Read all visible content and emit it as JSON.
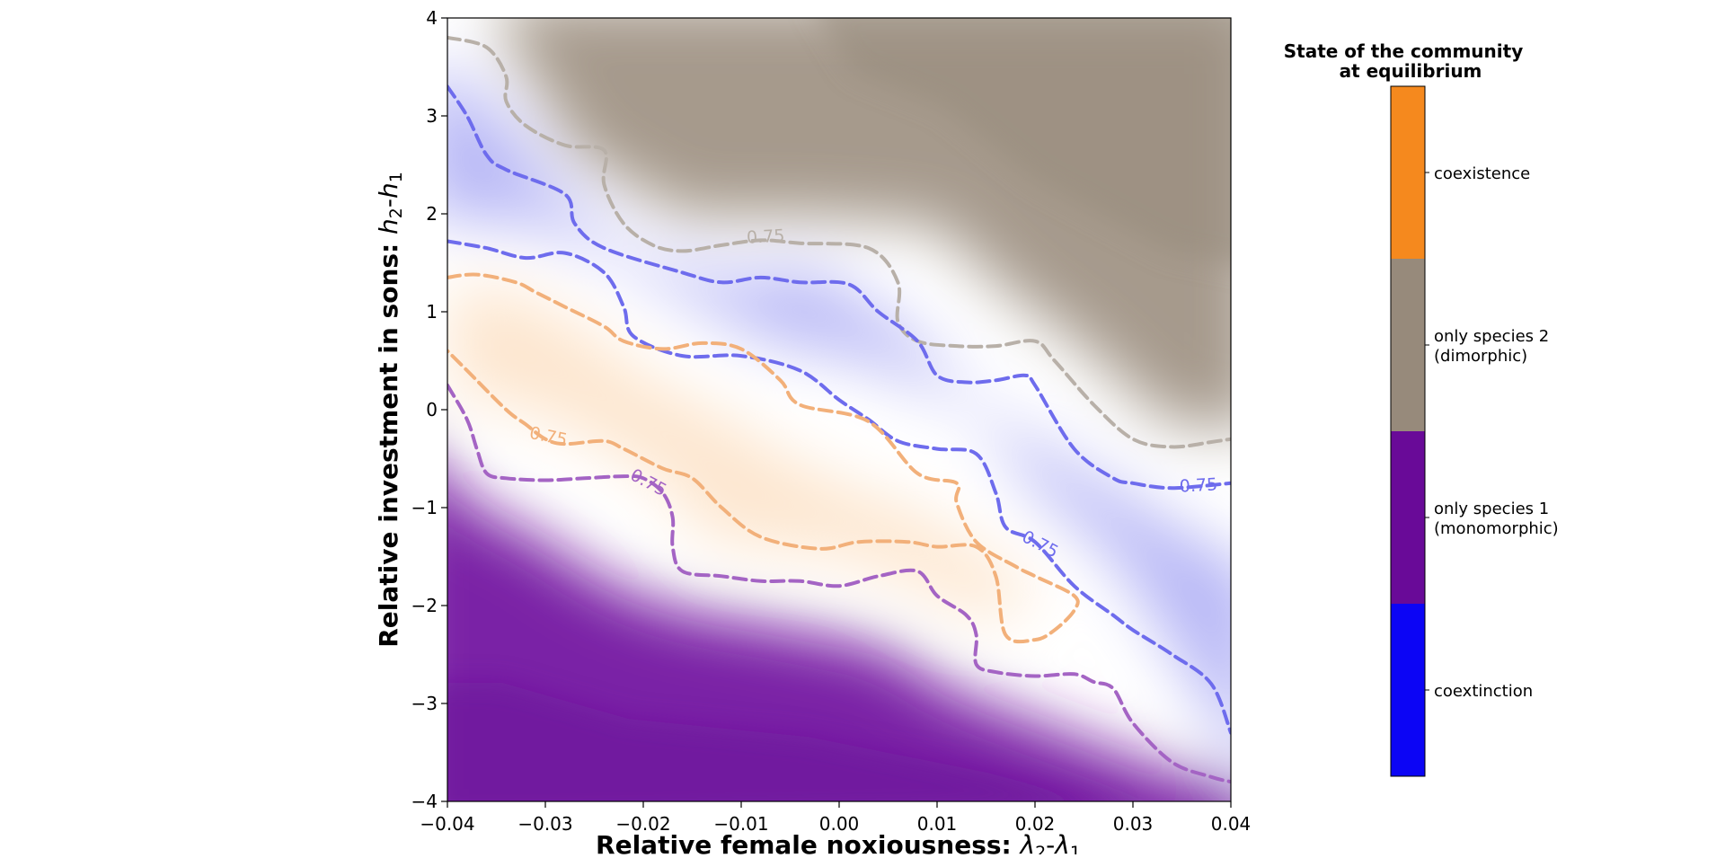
{
  "chart_data": {
    "type": "heatmap",
    "xlabel_main": "Relative female noxiousness: ",
    "xlabel_math": "λ",
    "xlabel_sub1": "2",
    "xlabel_dash": "-",
    "xlabel_sub2": "1",
    "ylabel_main": "Relative investment in sons: ",
    "ylabel_math": "h",
    "ylabel_sub1": "2",
    "ylabel_dash": "-",
    "ylabel_sub2": "1",
    "xlim": [
      -0.04,
      0.04
    ],
    "ylim": [
      -4,
      4
    ],
    "x_ticks": [
      -0.04,
      -0.03,
      -0.02,
      -0.01,
      0.0,
      0.01,
      0.02,
      0.03,
      0.04
    ],
    "x_tick_labels": [
      "−0.04",
      "−0.03",
      "−0.02",
      "−0.01",
      "0.00",
      "0.01",
      "0.02",
      "0.03",
      "0.04"
    ],
    "y_ticks": [
      -4,
      -3,
      -2,
      -1,
      0,
      1,
      2,
      3,
      4
    ],
    "y_tick_labels": [
      "−4",
      "−3",
      "−2",
      "−1",
      "0",
      "1",
      "2",
      "3",
      "4"
    ],
    "legend": {
      "title_line1": "State of the community",
      "title_line2": "at equilibrium",
      "placement": "right",
      "entries": [
        {
          "label_line1": "coexistence",
          "label_line2": "",
          "color": "#f5891e"
        },
        {
          "label_line1": "only species 2",
          "label_line2": "(dimorphic)",
          "color": "#978a7b"
        },
        {
          "label_line1": "only species 1",
          "label_line2": "(monomorphic)",
          "color": "#690a98"
        },
        {
          "label_line1": "coextinction",
          "label_line2": "",
          "color": "#0c05f5"
        }
      ]
    },
    "contour_level": "0.75",
    "contours": [
      {
        "state": "only species 2",
        "color": "#b8b0a8",
        "x": [
          -0.04,
          -0.036,
          -0.034,
          -0.034,
          -0.032,
          -0.028,
          -0.024,
          -0.024,
          -0.022,
          -0.019,
          -0.016,
          -0.012,
          -0.008,
          -0.004,
          0.003,
          0.006,
          0.006,
          0.008,
          0.012,
          0.016,
          0.02,
          0.022,
          0.026,
          0.03,
          0.034,
          0.038,
          0.04
        ],
        "y": [
          3.8,
          3.7,
          3.4,
          3.15,
          2.9,
          2.7,
          2.65,
          2.3,
          1.9,
          1.68,
          1.62,
          1.68,
          1.73,
          1.7,
          1.65,
          1.3,
          0.9,
          0.7,
          0.65,
          0.65,
          0.7,
          0.5,
          0.05,
          -0.3,
          -0.38,
          -0.33,
          -0.3
        ]
      },
      {
        "state": "coextinction",
        "color": "#6e6ced",
        "x": [
          -0.04,
          -0.038,
          -0.036,
          -0.034,
          -0.028,
          -0.027,
          -0.024,
          -0.016,
          -0.012,
          -0.008,
          -0.004,
          0.001,
          0.004,
          0.008,
          0.01,
          0.013,
          0.016,
          0.019,
          0.02,
          0.024,
          0.028,
          0.03,
          0.034,
          0.04
        ],
        "y": [
          3.3,
          3.0,
          2.6,
          2.45,
          2.2,
          1.9,
          1.65,
          1.4,
          1.3,
          1.35,
          1.3,
          1.28,
          1.0,
          0.7,
          0.35,
          0.28,
          0.3,
          0.35,
          0.25,
          -0.4,
          -0.7,
          -0.75,
          -0.8,
          -0.75
        ]
      },
      {
        "state": "coextinction",
        "color": "#6e6ced",
        "x": [
          -0.04,
          -0.036,
          -0.032,
          -0.028,
          -0.024,
          -0.022,
          -0.021,
          -0.016,
          -0.01,
          -0.004,
          0.0,
          0.003,
          0.006,
          0.01,
          0.014,
          0.016,
          0.017,
          0.02,
          0.024,
          0.028,
          0.03,
          0.034,
          0.038,
          0.04
        ],
        "y": [
          1.72,
          1.65,
          1.55,
          1.6,
          1.4,
          1.05,
          0.75,
          0.55,
          0.55,
          0.4,
          0.1,
          -0.1,
          -0.32,
          -0.4,
          -0.45,
          -0.85,
          -1.2,
          -1.35,
          -1.8,
          -2.1,
          -2.25,
          -2.5,
          -2.8,
          -3.3
        ]
      },
      {
        "state": "coexistence",
        "color": "#f2b07a",
        "x": [
          -0.04,
          -0.037,
          -0.033,
          -0.031,
          -0.028,
          -0.024,
          -0.022,
          -0.018,
          -0.014,
          -0.01,
          -0.006,
          -0.004,
          0.003,
          0.008,
          0.012,
          0.012,
          0.014,
          0.018,
          0.02,
          0.024,
          0.024,
          0.022,
          0.02,
          0.017,
          0.016,
          0.014,
          0.01,
          0.007,
          0.002,
          -0.002,
          -0.008,
          -0.012,
          -0.015,
          -0.018,
          -0.022,
          -0.024,
          -0.028,
          -0.03,
          -0.032,
          -0.034,
          -0.038,
          -0.04
        ],
        "y": [
          1.35,
          1.38,
          1.3,
          1.2,
          1.05,
          0.85,
          0.7,
          0.62,
          0.68,
          0.62,
          0.3,
          0.05,
          -0.12,
          -0.65,
          -0.75,
          -0.95,
          -1.35,
          -1.6,
          -1.7,
          -1.9,
          -2.05,
          -2.25,
          -2.35,
          -2.3,
          -1.7,
          -1.4,
          -1.4,
          -1.35,
          -1.35,
          -1.42,
          -1.3,
          -1.0,
          -0.7,
          -0.6,
          -0.4,
          -0.32,
          -0.35,
          -0.3,
          -0.15,
          0.0,
          0.4,
          0.6
        ]
      },
      {
        "state": "only species 1",
        "color": "#a464c4",
        "x": [
          -0.04,
          -0.038,
          -0.037,
          -0.036,
          -0.034,
          -0.03,
          -0.026,
          -0.022,
          -0.02,
          -0.018,
          -0.017,
          -0.017,
          -0.016,
          -0.012,
          -0.008,
          -0.004,
          0.0,
          0.004,
          0.008,
          0.01,
          0.013,
          0.014,
          0.014,
          0.016,
          0.02,
          0.024,
          0.026,
          0.028,
          0.03,
          0.034,
          0.038,
          0.04
        ],
        "y": [
          0.25,
          -0.1,
          -0.4,
          -0.65,
          -0.7,
          -0.72,
          -0.7,
          -0.68,
          -0.7,
          -0.85,
          -1.1,
          -1.4,
          -1.65,
          -1.7,
          -1.75,
          -1.75,
          -1.8,
          -1.7,
          -1.65,
          -1.9,
          -2.1,
          -2.3,
          -2.6,
          -2.68,
          -2.72,
          -2.7,
          -2.78,
          -2.85,
          -3.2,
          -3.6,
          -3.75,
          -3.8
        ]
      }
    ],
    "contour_labels": [
      {
        "text": "0.75",
        "x": -0.0075,
        "y": 1.76,
        "rot": -3,
        "color": "#b8b0a8"
      },
      {
        "text": "0.75",
        "x": 0.0367,
        "y": -0.78,
        "rot": -3,
        "color": "#6e6ced"
      },
      {
        "text": "0.75",
        "x": 0.0205,
        "y": -1.38,
        "rot": 28,
        "color": "#6e6ced"
      },
      {
        "text": "0.75",
        "x": -0.0297,
        "y": -0.28,
        "rot": 12,
        "color": "#f2b07a"
      },
      {
        "text": "0.75",
        "x": -0.0195,
        "y": -0.75,
        "rot": 28,
        "color": "#a464c4"
      }
    ]
  }
}
